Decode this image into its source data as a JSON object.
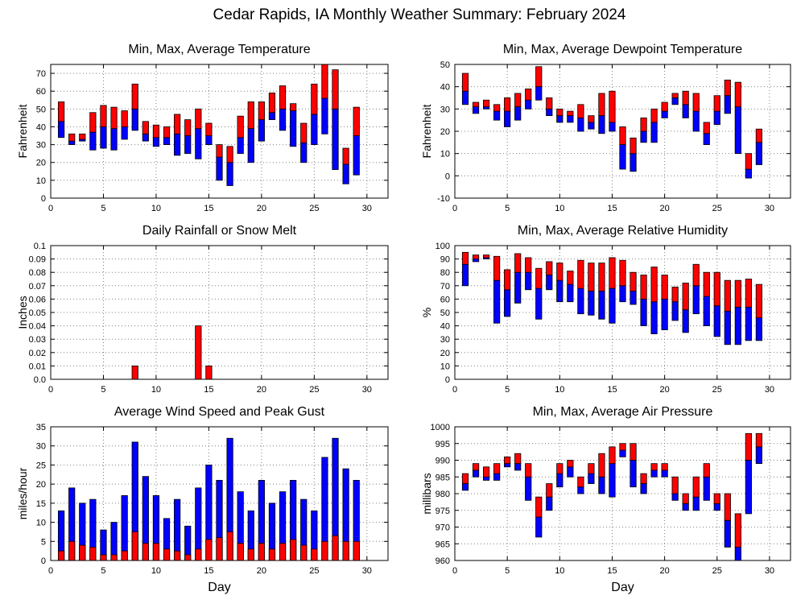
{
  "page": {
    "title": "Cedar Rapids, IA Monthly Weather Summary: February 2024"
  },
  "colors": {
    "upper": "#ff0000",
    "lower": "#0000ff",
    "frame": "#000000",
    "grid": "#808080"
  },
  "chart_data": [
    {
      "id": "temperature",
      "type": "bar",
      "title": "Min, Max, Average Temperature",
      "ylabel": "Fahrenheit",
      "xlabel": "",
      "xlim": [
        0,
        32
      ],
      "ylim": [
        0,
        75
      ],
      "xticks": [
        0,
        5,
        10,
        15,
        20,
        25,
        30
      ],
      "yticks": [
        0,
        10,
        20,
        30,
        40,
        50,
        60,
        70
      ],
      "grid": true,
      "style": "range",
      "x": [
        1,
        2,
        3,
        4,
        5,
        6,
        7,
        8,
        9,
        10,
        11,
        12,
        13,
        14,
        15,
        16,
        17,
        18,
        19,
        20,
        21,
        22,
        23,
        24,
        25,
        26,
        27,
        28,
        29
      ],
      "min": [
        34,
        30,
        32,
        27,
        28,
        27,
        33,
        38,
        32,
        29,
        30,
        24,
        25,
        22,
        30,
        10,
        7,
        25,
        20,
        32,
        44,
        38,
        29,
        20,
        30,
        36,
        16,
        8,
        13
      ],
      "avg": [
        43,
        32,
        33,
        37,
        40,
        39,
        40,
        50,
        36,
        34,
        34,
        36,
        35,
        39,
        35,
        23,
        20,
        34,
        39,
        44,
        48,
        50,
        49,
        31,
        47,
        56,
        50,
        19,
        35
      ],
      "max": [
        54,
        36,
        36,
        48,
        52,
        51,
        49,
        64,
        43,
        41,
        40,
        47,
        44,
        50,
        42,
        30,
        29,
        46,
        54,
        54,
        59,
        63,
        53,
        42,
        64,
        75,
        72,
        28,
        51
      ]
    },
    {
      "id": "dewpoint",
      "type": "bar",
      "title": "Min, Max, Average Dewpoint Temperature",
      "ylabel": "Fahrenheit",
      "xlabel": "",
      "xlim": [
        0,
        32
      ],
      "ylim": [
        -10,
        50
      ],
      "xticks": [
        0,
        5,
        10,
        15,
        20,
        25,
        30
      ],
      "yticks": [
        -10,
        0,
        10,
        20,
        30,
        40,
        50
      ],
      "grid": true,
      "style": "range",
      "x": [
        1,
        2,
        3,
        4,
        5,
        6,
        7,
        8,
        9,
        10,
        11,
        12,
        13,
        14,
        15,
        16,
        17,
        18,
        19,
        20,
        21,
        22,
        23,
        24,
        25,
        26,
        27,
        28,
        29
      ],
      "min": [
        32,
        28,
        30,
        25,
        22,
        25,
        30,
        34,
        27,
        24,
        24,
        20,
        21,
        19,
        20,
        3,
        2,
        15,
        15,
        26,
        32,
        26,
        20,
        14,
        23,
        28,
        10,
        -1,
        5
      ],
      "avg": [
        38,
        31,
        31,
        29,
        29,
        31,
        34,
        40,
        30,
        27,
        27,
        26,
        24,
        27,
        24,
        14,
        10,
        20,
        24,
        29,
        35,
        32,
        29,
        19,
        29,
        36,
        31,
        3,
        15
      ],
      "max": [
        46,
        33,
        34,
        32,
        35,
        37,
        39,
        49,
        35,
        30,
        29,
        32,
        27,
        37,
        38,
        22,
        17,
        26,
        30,
        33,
        37,
        38,
        37,
        24,
        36,
        43,
        42,
        10,
        21
      ]
    },
    {
      "id": "rainfall",
      "type": "bar",
      "title": "Daily Rainfall or Snow Melt",
      "ylabel": "Inches",
      "xlabel": "",
      "xlim": [
        0,
        32
      ],
      "ylim": [
        0,
        0.1
      ],
      "xticks": [
        0,
        5,
        10,
        15,
        20,
        25,
        30
      ],
      "yticks": [
        "0.0",
        "0.01",
        "0.02",
        "0.03",
        "0.04",
        "0.05",
        "0.06",
        "0.07",
        "0.08",
        "0.09",
        "0.1"
      ],
      "grid": true,
      "style": "single",
      "x": [
        8,
        14,
        15
      ],
      "values": [
        0.01,
        0.04,
        0.01
      ]
    },
    {
      "id": "humidity",
      "type": "bar",
      "title": "Min, Max, Average Relative Humidity",
      "ylabel": "%",
      "xlabel": "",
      "xlim": [
        0,
        32
      ],
      "ylim": [
        0,
        100
      ],
      "xticks": [
        0,
        5,
        10,
        15,
        20,
        25,
        30
      ],
      "yticks": [
        0,
        10,
        20,
        30,
        40,
        50,
        60,
        70,
        80,
        90,
        100
      ],
      "grid": true,
      "style": "range",
      "x": [
        1,
        2,
        3,
        4,
        5,
        6,
        7,
        8,
        9,
        10,
        11,
        12,
        13,
        14,
        15,
        16,
        17,
        18,
        19,
        20,
        21,
        22,
        23,
        24,
        25,
        26,
        27,
        28,
        29
      ],
      "min": [
        70,
        88,
        90,
        42,
        47,
        57,
        67,
        45,
        67,
        58,
        58,
        49,
        48,
        45,
        42,
        58,
        56,
        40,
        34,
        37,
        44,
        35,
        49,
        40,
        32,
        26,
        26,
        29,
        29
      ],
      "avg": [
        86,
        90,
        91,
        74,
        67,
        80,
        80,
        68,
        78,
        74,
        71,
        68,
        66,
        66,
        68,
        70,
        66,
        60,
        58,
        60,
        58,
        52,
        70,
        62,
        55,
        51,
        54,
        54,
        46
      ],
      "max": [
        95,
        93,
        93,
        92,
        82,
        94,
        91,
        83,
        88,
        87,
        81,
        89,
        87,
        87,
        91,
        89,
        80,
        78,
        84,
        78,
        69,
        72,
        86,
        80,
        80,
        74,
        74,
        75,
        71
      ]
    },
    {
      "id": "wind",
      "type": "bar",
      "title": "Average Wind Speed and Peak Gust",
      "ylabel": "miles/hour",
      "xlabel": "Day",
      "xlim": [
        0,
        32
      ],
      "ylim": [
        0,
        35
      ],
      "xticks": [
        0,
        5,
        10,
        15,
        20,
        25,
        30
      ],
      "yticks": [
        0,
        5,
        10,
        15,
        20,
        25,
        30,
        35
      ],
      "grid": true,
      "style": "wind",
      "x": [
        1,
        2,
        3,
        4,
        5,
        6,
        7,
        8,
        9,
        10,
        11,
        12,
        13,
        14,
        15,
        16,
        17,
        18,
        19,
        20,
        21,
        22,
        23,
        24,
        25,
        26,
        27,
        28,
        29
      ],
      "average": [
        2.5,
        5,
        4,
        3.5,
        1.5,
        1.5,
        2.5,
        7.5,
        4.5,
        4.5,
        3,
        2.5,
        1.5,
        3,
        5.5,
        6,
        7.5,
        4.5,
        3,
        4.5,
        3,
        4.5,
        5.5,
        4,
        3,
        5,
        6.5,
        5,
        5
      ],
      "gust": [
        13,
        19,
        15,
        16,
        8,
        10,
        17,
        31,
        22,
        17,
        11,
        16,
        9,
        19,
        25,
        21,
        32,
        18,
        13,
        21,
        15,
        18,
        21,
        16,
        13,
        27,
        32,
        24,
        21
      ]
    },
    {
      "id": "pressure",
      "type": "bar",
      "title": "Min, Max, Average Air Pressure",
      "ylabel": "millibars",
      "xlabel": "Day",
      "xlim": [
        0,
        32
      ],
      "ylim": [
        960,
        1000
      ],
      "xticks": [
        0,
        5,
        10,
        15,
        20,
        25,
        30
      ],
      "yticks": [
        960,
        965,
        970,
        975,
        980,
        985,
        990,
        995,
        1000
      ],
      "grid": true,
      "style": "range",
      "x": [
        1,
        2,
        3,
        4,
        5,
        6,
        7,
        8,
        9,
        10,
        11,
        12,
        13,
        14,
        15,
        16,
        17,
        18,
        19,
        20,
        21,
        22,
        23,
        24,
        25,
        26,
        27,
        28,
        29
      ],
      "min": [
        981,
        985,
        984,
        984,
        988,
        987,
        978,
        967,
        975,
        982,
        985,
        980,
        983,
        980,
        979,
        991,
        982,
        980,
        985,
        985,
        978,
        975,
        975,
        978,
        975,
        964,
        960,
        974,
        989
      ],
      "avg": [
        983,
        987,
        985,
        986,
        989,
        989,
        985,
        973,
        979,
        986,
        988,
        982,
        986,
        985,
        989,
        993,
        990,
        983,
        987,
        987,
        980,
        977,
        979,
        985,
        977,
        972,
        964,
        990,
        994
      ],
      "max": [
        986,
        989,
        988,
        989,
        991,
        992,
        989,
        979,
        983,
        989,
        990,
        985,
        989,
        992,
        994,
        995,
        995,
        986,
        989,
        989,
        985,
        980,
        985,
        989,
        980,
        980,
        974,
        998,
        998
      ]
    }
  ]
}
